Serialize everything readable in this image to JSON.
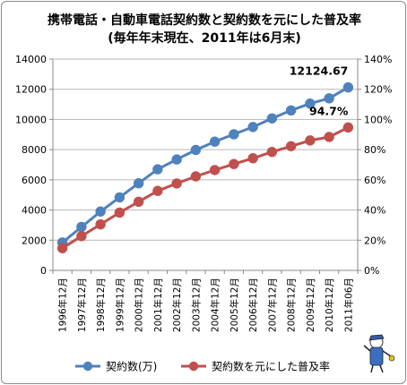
{
  "chart_data": {
    "type": "line",
    "title": "携帯電話・自動車電話契約数と契約数を元にした普及率",
    "subtitle": "(毎年年末現在、2011年は6月末)",
    "categories": [
      "1996年12月",
      "1997年12月",
      "1998年12月",
      "1999年12月",
      "2000年12月",
      "2001年12月",
      "2002年12月",
      "2003年12月",
      "2004年12月",
      "2005年12月",
      "2006年12月",
      "2007年12月",
      "2008年12月",
      "2009年12月",
      "2010年12月",
      "2011年06月"
    ],
    "y_left": {
      "ylim": [
        0,
        14000
      ],
      "ticks": [
        "0",
        "2000",
        "4000",
        "6000",
        "8000",
        "10000",
        "12000",
        "14000"
      ]
    },
    "y_right": {
      "ylim": [
        0,
        140
      ],
      "ticks": [
        "0%",
        "20%",
        "40%",
        "60%",
        "80%",
        "100%",
        "120%",
        "140%"
      ]
    },
    "grid": true,
    "legend_position": "bottom",
    "series": [
      {
        "name": "契約数(万)",
        "axis": "left",
        "color": "#4f81bd",
        "values": [
          1850,
          2880,
          3900,
          4840,
          5770,
          6700,
          7350,
          7980,
          8530,
          9020,
          9500,
          10070,
          10600,
          11050,
          11400,
          12124.67
        ]
      },
      {
        "name": "契約数を元にした普及率",
        "axis": "right",
        "color": "#c0504d",
        "values": [
          14.7,
          22.7,
          30.5,
          38.3,
          45.5,
          52.7,
          57.6,
          62.3,
          66.5,
          70.5,
          74.3,
          78.5,
          82.3,
          86.1,
          88.4,
          94.7
        ]
      }
    ],
    "annotations": [
      {
        "text": "12124.67",
        "series": 0,
        "index": 15
      },
      {
        "text": "94.7%",
        "series": 1,
        "index": 15
      }
    ]
  }
}
